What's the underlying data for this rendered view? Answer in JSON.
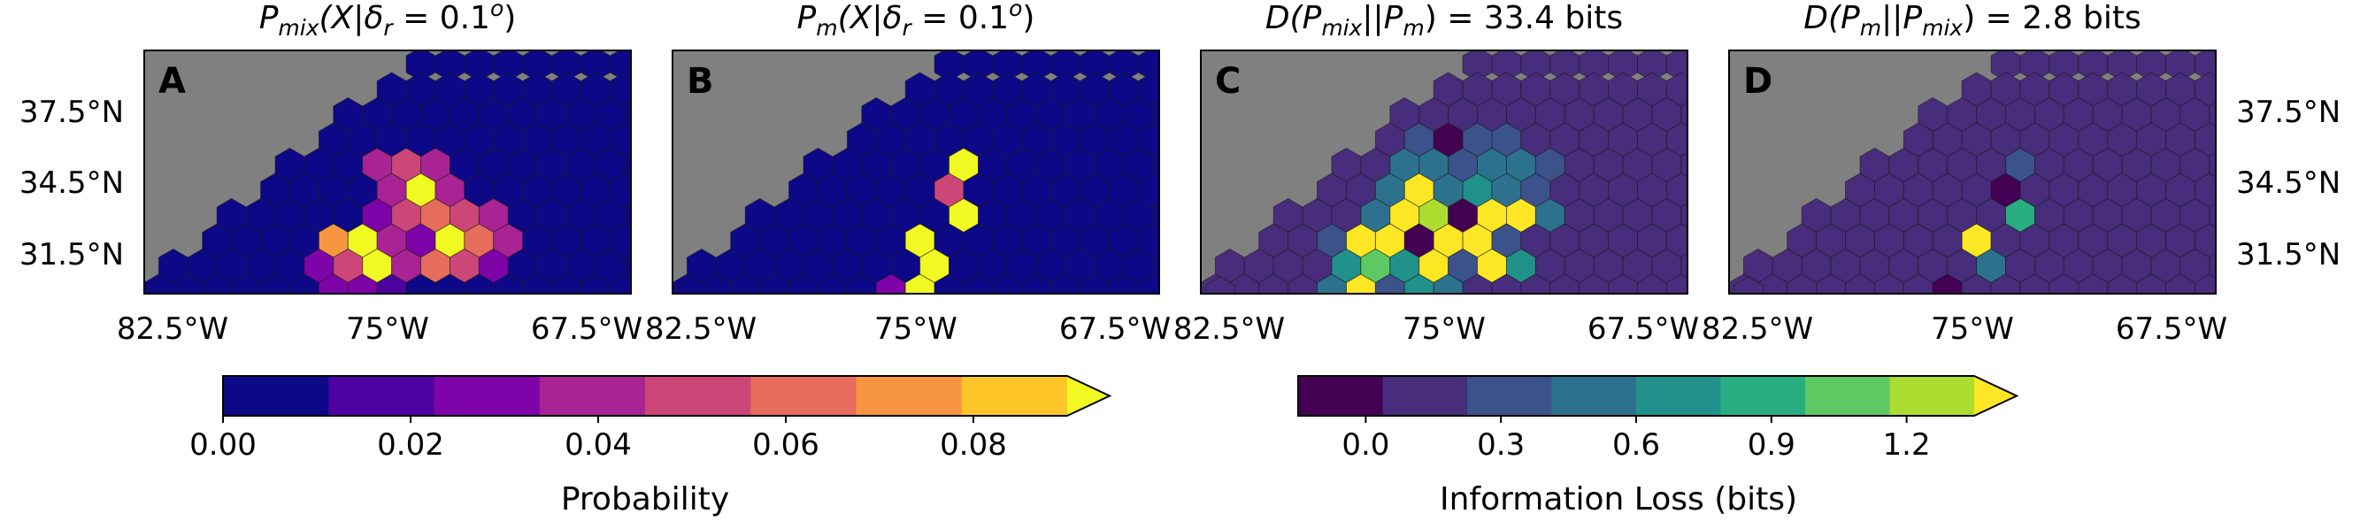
{
  "panels": [
    {
      "letter": "A",
      "title": "P_mix(X|δ_r = 0.1°)",
      "title_parts": {
        "main": "P",
        "sub": "mix",
        "rest": "(X|δ",
        "sub2": "r",
        "tail": " = 0.1",
        "sup": "o",
        "close": ")"
      },
      "colormap": "plasma",
      "hot_cells": [
        [
          3,
          3,
          0.03
        ],
        [
          4,
          3,
          0.045
        ],
        [
          5,
          3,
          0.03
        ],
        [
          4,
          4,
          0.03
        ],
        [
          5,
          4,
          0.09
        ],
        [
          6,
          4,
          0.035
        ],
        [
          3,
          5,
          0.02
        ],
        [
          4,
          5,
          0.045
        ],
        [
          5,
          5,
          0.05
        ],
        [
          6,
          5,
          0.04
        ],
        [
          7,
          5,
          0.03
        ],
        [
          2,
          6,
          0.06
        ],
        [
          3,
          6,
          0.09
        ],
        [
          4,
          6,
          0.035
        ],
        [
          5,
          6,
          0.025
        ],
        [
          6,
          6,
          0.09
        ],
        [
          7,
          6,
          0.05
        ],
        [
          8,
          6,
          0.035
        ],
        [
          1,
          7,
          0.025
        ],
        [
          2,
          7,
          0.04
        ],
        [
          3,
          7,
          0.09
        ],
        [
          4,
          7,
          0.03
        ],
        [
          5,
          7,
          0.05
        ],
        [
          6,
          7,
          0.045
        ],
        [
          7,
          7,
          0.02
        ],
        [
          2,
          8,
          0.025
        ],
        [
          3,
          8,
          0.02
        ],
        [
          4,
          8,
          0.015
        ],
        [
          2,
          9,
          0.02
        ]
      ]
    },
    {
      "letter": "B",
      "title": "P_m(X|δ_r = 0.1°)",
      "title_parts": {
        "main": "P",
        "sub": "m",
        "rest": "(X|δ",
        "sub2": "r",
        "tail": " = 0.1",
        "sup": "o",
        "close": ")"
      },
      "colormap": "plasma",
      "hot_cells": [
        [
          5,
          3,
          0.09
        ],
        [
          5,
          4,
          0.04
        ],
        [
          5,
          5,
          0.09
        ],
        [
          4,
          6,
          0.09
        ],
        [
          4,
          7,
          0.09
        ],
        [
          3,
          8,
          0.025
        ],
        [
          4,
          8,
          0.09
        ]
      ]
    },
    {
      "letter": "C",
      "title": "D(P_mix||P_m) = 33.4 bits",
      "title_parts": {
        "main": "D(P",
        "sub": "mix",
        "rest": "||P",
        "sub2": "m",
        "tail": ") = 33.4 bits"
      },
      "colormap": "viridis",
      "hot_cells": [
        [
          3,
          2,
          0.25
        ],
        [
          4,
          2,
          -0.15
        ],
        [
          5,
          2,
          0.3
        ],
        [
          6,
          2,
          0.25
        ],
        [
          2,
          3,
          0.35
        ],
        [
          3,
          3,
          0.4
        ],
        [
          4,
          3,
          0.3
        ],
        [
          5,
          3,
          0.45
        ],
        [
          6,
          3,
          0.35
        ],
        [
          7,
          3,
          0.3
        ],
        [
          2,
          4,
          0.45
        ],
        [
          3,
          4,
          1.25
        ],
        [
          4,
          4,
          0.45
        ],
        [
          5,
          4,
          0.55
        ],
        [
          6,
          4,
          0.45
        ],
        [
          7,
          4,
          0.3
        ],
        [
          1,
          5,
          0.4
        ],
        [
          2,
          5,
          1.35
        ],
        [
          3,
          5,
          1.1
        ],
        [
          4,
          5,
          -0.1
        ],
        [
          5,
          5,
          1.3
        ],
        [
          6,
          5,
          1.35
        ],
        [
          7,
          5,
          0.5
        ],
        [
          0,
          6,
          0.3
        ],
        [
          1,
          6,
          1.3
        ],
        [
          2,
          6,
          1.3
        ],
        [
          3,
          6,
          -0.1
        ],
        [
          4,
          6,
          1.3
        ],
        [
          5,
          6,
          1.35
        ],
        [
          6,
          6,
          0.3
        ],
        [
          0,
          7,
          0.65
        ],
        [
          1,
          7,
          0.9
        ],
        [
          2,
          7,
          0.55
        ],
        [
          3,
          7,
          1.2
        ],
        [
          4,
          7,
          0.3
        ],
        [
          5,
          7,
          1.35
        ],
        [
          6,
          7,
          0.6
        ],
        [
          0,
          8,
          0.4
        ],
        [
          1,
          8,
          1.3
        ],
        [
          2,
          8,
          0.3
        ],
        [
          3,
          8,
          0.55
        ],
        [
          4,
          8,
          0.35
        ],
        [
          0,
          9,
          0.5
        ],
        [
          1,
          9,
          0.7
        ],
        [
          2,
          9,
          0.45
        ]
      ]
    },
    {
      "letter": "D",
      "title": "D(P_m||P_mix) = 2.8 bits",
      "title_parts": {
        "main": "D(P",
        "sub": "m",
        "rest": "||P",
        "sub2": "mix",
        "tail": ") = 2.8 bits"
      },
      "colormap": "viridis",
      "hot_cells": [
        [
          5,
          3,
          0.2
        ],
        [
          5,
          4,
          -0.15
        ],
        [
          5,
          5,
          0.75
        ],
        [
          4,
          6,
          1.35
        ],
        [
          4,
          7,
          0.5
        ],
        [
          3,
          8,
          -0.15
        ]
      ]
    }
  ],
  "axes": {
    "x_ticks": [
      "82.5°W",
      "75°W",
      "67.5°W"
    ],
    "y_ticks": [
      "37.5°N",
      "34.5°N",
      "31.5°N"
    ]
  },
  "colorbars": [
    {
      "label": "Probability",
      "colormap": "plasma",
      "ticks": [
        "0.00",
        "0.02",
        "0.04",
        "0.06",
        "0.08"
      ],
      "tick_values": [
        0,
        0.02,
        0.04,
        0.06,
        0.08
      ],
      "range": [
        0,
        0.09
      ],
      "extend": "max"
    },
    {
      "label": "Information Loss (bits)",
      "colormap": "viridis",
      "ticks": [
        "0.0",
        "0.3",
        "0.6",
        "0.9",
        "1.2"
      ],
      "tick_values": [
        0,
        0.3,
        0.6,
        0.9,
        1.2
      ],
      "range": [
        -0.15,
        1.35
      ],
      "extend": "max"
    }
  ],
  "colors": {
    "land": "#808080",
    "plasma": [
      "#0d0887",
      "#4c02a1",
      "#7e03a8",
      "#a92395",
      "#cc4778",
      "#e66c5c",
      "#f89540",
      "#fdc527",
      "#f0f921"
    ],
    "viridis": [
      "#440154",
      "#472d7b",
      "#3b528b",
      "#2c728e",
      "#21918c",
      "#28ae80",
      "#5ec962",
      "#addc30",
      "#fde725"
    ],
    "plasma_base": "#0d0887",
    "viridis_base": "#472d7b"
  }
}
